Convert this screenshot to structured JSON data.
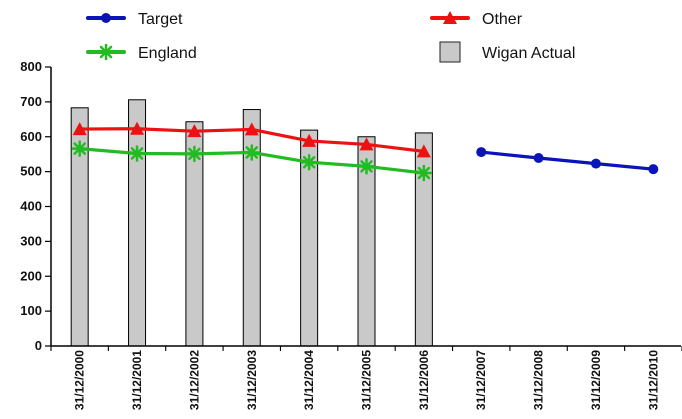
{
  "chart_data": {
    "type": "bar",
    "categories": [
      "31/12/2000",
      "31/12/2001",
      "31/12/2002",
      "31/12/2003",
      "31/12/2004",
      "31/12/2005",
      "31/12/2006",
      "31/12/2007",
      "31/12/2008",
      "31/12/2009",
      "31/12/2010"
    ],
    "ylim": [
      0,
      800
    ],
    "yticks": [
      0,
      100,
      200,
      300,
      400,
      500,
      600,
      700,
      800
    ],
    "grid": false,
    "legend_position": "top",
    "series": [
      {
        "name": "Target",
        "type": "line",
        "marker": "circle",
        "color": "#0a14b8",
        "values": [
          null,
          null,
          null,
          null,
          null,
          null,
          null,
          556,
          539,
          523,
          507
        ]
      },
      {
        "name": "Other",
        "type": "line",
        "marker": "triangle",
        "color": "#ee1111",
        "values": [
          622,
          623,
          616,
          621,
          588,
          578,
          558,
          null,
          null,
          null,
          null
        ]
      },
      {
        "name": "England",
        "type": "line",
        "marker": "asterisk",
        "color": "#22bb22",
        "values": [
          566,
          552,
          551,
          555,
          527,
          515,
          496,
          null,
          null,
          null,
          null
        ]
      },
      {
        "name": "Wigan Actual",
        "type": "bar",
        "color": "#c9c9c9",
        "values": [
          683,
          706,
          643,
          678,
          619,
          600,
          611,
          null,
          null,
          null,
          null
        ]
      }
    ]
  }
}
